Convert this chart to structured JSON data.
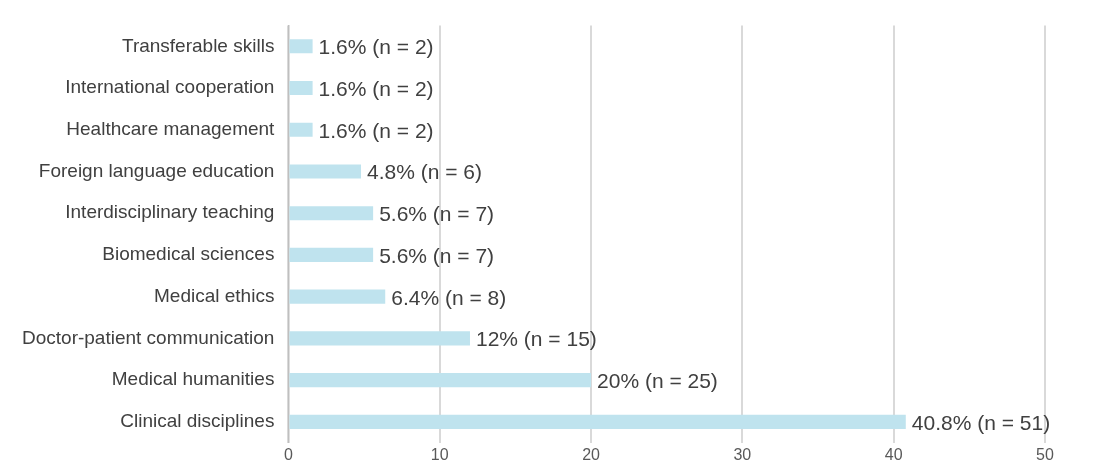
{
  "chart_data": {
    "type": "bar",
    "orientation": "horizontal",
    "categories": [
      "Transferable skills",
      "International cooperation",
      "Healthcare management",
      "Foreign language education",
      "Interdisciplinary teaching",
      "Biomedical sciences",
      "Medical ethics",
      "Doctor-patient communication",
      "Medical humanities",
      "Clinical disciplines"
    ],
    "values": [
      1.6,
      1.6,
      1.6,
      4.8,
      5.6,
      5.6,
      6.4,
      12,
      20,
      40.8
    ],
    "value_labels": [
      "1.6% (n = 2)",
      "1.6% (n = 2)",
      "1.6% (n = 2)",
      "4.8% (n = 6)",
      "5.6% (n = 7)",
      "5.6% (n = 7)",
      "6.4% (n = 8)",
      "12% (n = 15)",
      "20% (n = 25)",
      "40.8% (n = 51)"
    ],
    "color": "#bfe3ee",
    "xlim": [
      0,
      50
    ],
    "xticks": [
      0,
      10,
      20,
      30,
      40,
      50
    ],
    "grid": "x",
    "legend": false
  }
}
